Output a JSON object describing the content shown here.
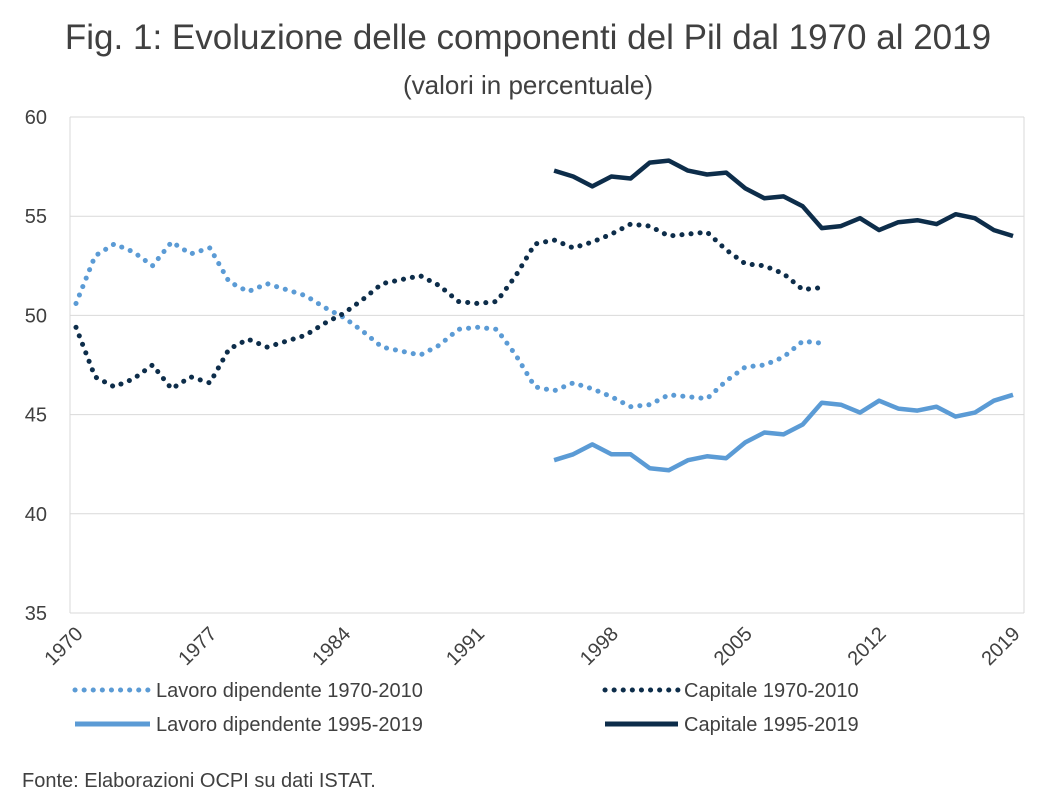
{
  "chart_data": {
    "type": "line",
    "title": "Fig. 1: Evoluzione delle componenti del Pil dal 1970 al 2019",
    "subtitle": "(valori in percentuale)",
    "source": "Fonte: Elaborazioni OCPI su dati ISTAT.",
    "ylim": [
      35,
      60
    ],
    "yticks": [
      35,
      40,
      45,
      50,
      55,
      60
    ],
    "xlim": [
      1970,
      2019
    ],
    "xticks": [
      "1970",
      "1977",
      "1984",
      "1991",
      "1998",
      "2005",
      "2012",
      "2019"
    ],
    "grid": true,
    "legend_position": "bottom",
    "series": [
      {
        "name": "Lavoro dipendente 1970-2010",
        "color": "#5b9bd5",
        "style": "dotted",
        "x": [
          1970,
          1971,
          1972,
          1973,
          1974,
          1975,
          1976,
          1977,
          1978,
          1979,
          1980,
          1981,
          1982,
          1983,
          1984,
          1985,
          1986,
          1987,
          1988,
          1989,
          1990,
          1991,
          1992,
          1993,
          1994,
          1995,
          1996,
          1997,
          1998,
          1999,
          2000,
          2001,
          2002,
          2003,
          2004,
          2005,
          2006,
          2007,
          2008,
          2009,
          2010
        ],
        "values": [
          50.6,
          53.0,
          53.6,
          53.2,
          52.5,
          53.7,
          53.1,
          53.4,
          51.7,
          51.2,
          51.6,
          51.3,
          51.0,
          50.4,
          49.9,
          49.2,
          48.4,
          48.2,
          48.0,
          48.5,
          49.3,
          49.4,
          49.3,
          48.0,
          46.4,
          46.2,
          46.6,
          46.3,
          45.9,
          45.4,
          45.5,
          46.0,
          45.9,
          45.8,
          46.7,
          47.4,
          47.5,
          47.9,
          48.7,
          48.6,
          null
        ]
      },
      {
        "name": "Capitale 1970-2010",
        "color": "#0d2d4a",
        "style": "dotted",
        "x": [
          1970,
          1971,
          1972,
          1973,
          1974,
          1975,
          1976,
          1977,
          1978,
          1979,
          1980,
          1981,
          1982,
          1983,
          1984,
          1985,
          1986,
          1987,
          1988,
          1989,
          1990,
          1991,
          1992,
          1993,
          1994,
          1995,
          1996,
          1997,
          1998,
          1999,
          2000,
          2001,
          2002,
          2003,
          2004,
          2005,
          2006,
          2007,
          2008,
          2009,
          2010
        ],
        "values": [
          49.4,
          46.9,
          46.4,
          46.8,
          47.5,
          46.3,
          46.9,
          46.6,
          48.3,
          48.8,
          48.4,
          48.7,
          49.0,
          49.6,
          50.1,
          50.8,
          51.6,
          51.8,
          52.0,
          51.5,
          50.7,
          50.6,
          50.7,
          52.0,
          53.6,
          53.8,
          53.4,
          53.7,
          54.1,
          54.6,
          54.5,
          54.0,
          54.1,
          54.2,
          53.3,
          52.6,
          52.5,
          52.1,
          51.3,
          51.4,
          null
        ]
      },
      {
        "name": "Lavoro dipendente 1995-2019",
        "color": "#5b9bd5",
        "style": "solid",
        "x": [
          1995,
          1996,
          1997,
          1998,
          1999,
          2000,
          2001,
          2002,
          2003,
          2004,
          2005,
          2006,
          2007,
          2008,
          2009,
          2010,
          2011,
          2012,
          2013,
          2014,
          2015,
          2016,
          2017,
          2018,
          2019
        ],
        "values": [
          42.7,
          43.0,
          43.5,
          43.0,
          43.0,
          42.3,
          42.2,
          42.7,
          42.9,
          42.8,
          43.6,
          44.1,
          44.0,
          44.5,
          45.6,
          45.5,
          45.1,
          45.7,
          45.3,
          45.2,
          45.4,
          44.9,
          45.1,
          45.7,
          46.0
        ]
      },
      {
        "name": "Capitale 1995-2019",
        "color": "#0d2d4a",
        "style": "solid",
        "x": [
          1995,
          1996,
          1997,
          1998,
          1999,
          2000,
          2001,
          2002,
          2003,
          2004,
          2005,
          2006,
          2007,
          2008,
          2009,
          2010,
          2011,
          2012,
          2013,
          2014,
          2015,
          2016,
          2017,
          2018,
          2019
        ],
        "values": [
          57.3,
          57.0,
          56.5,
          57.0,
          56.9,
          57.7,
          57.8,
          57.3,
          57.1,
          57.2,
          56.4,
          55.9,
          56.0,
          55.5,
          54.4,
          54.5,
          54.9,
          54.3,
          54.7,
          54.8,
          54.6,
          55.1,
          54.9,
          54.3,
          54.0
        ]
      }
    ]
  }
}
